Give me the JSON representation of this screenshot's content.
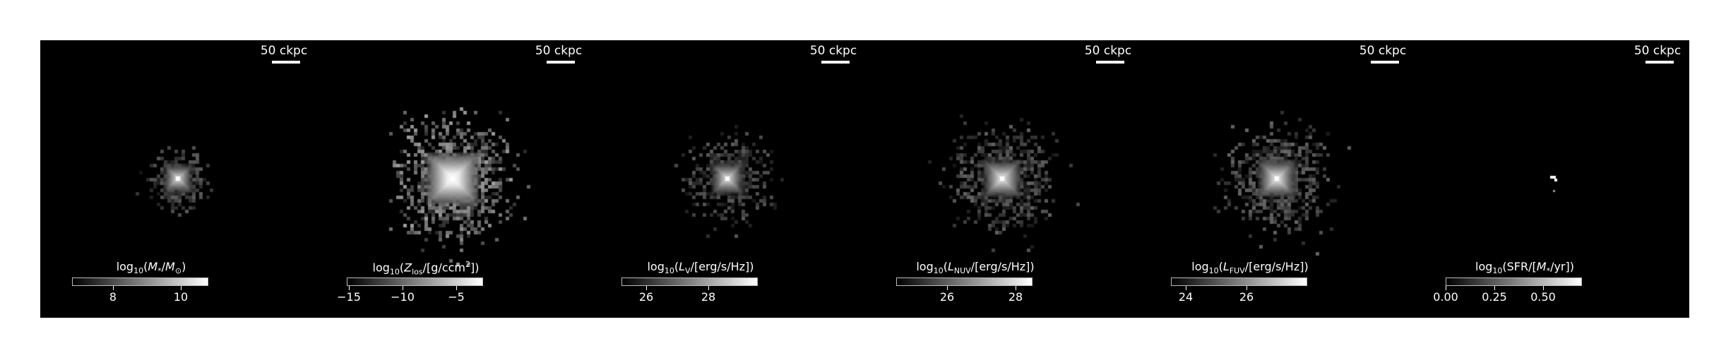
{
  "figure": {
    "panels": [
      {
        "scalebar": "50 ckpc",
        "colorbar_label_html": "log<sub>10</sub>(<i>M</i><sub>*</sub>/<i>M</i><sub>&#8857;</sub>)",
        "colorbar_range": [
          6.8,
          10.8
        ],
        "ticks": [
          {
            "value": 8,
            "label": "8"
          },
          {
            "value": 10,
            "label": "10"
          }
        ]
      },
      {
        "scalebar": "50 ckpc",
        "colorbar_label_html": "log<sub>10</sub>(<i>Z</i><sub>los</sub>/[g/ccm<sup>2</sup>])",
        "colorbar_range": [
          -15.2,
          -2.5
        ],
        "ticks": [
          {
            "value": -15,
            "label": "−15"
          },
          {
            "value": -10,
            "label": "−10"
          },
          {
            "value": -5,
            "label": "−5"
          }
        ]
      },
      {
        "scalebar": "50 ckpc",
        "colorbar_label_html": "log<sub>10</sub>(<i>L</i><sub>V</sub>/[erg/s/Hz])",
        "colorbar_range": [
          25.2,
          29.6
        ],
        "ticks": [
          {
            "value": 26,
            "label": "26"
          },
          {
            "value": 28,
            "label": "28"
          }
        ]
      },
      {
        "scalebar": "50 ckpc",
        "colorbar_label_html": "log<sub>10</sub>(<i>L</i><sub>NUV</sub>/[erg/s/Hz])",
        "colorbar_range": [
          24.5,
          28.5
        ],
        "ticks": [
          {
            "value": 26,
            "label": "26"
          },
          {
            "value": 28,
            "label": "28"
          }
        ]
      },
      {
        "scalebar": "50 ckpc",
        "colorbar_label_html": "log<sub>10</sub>(<i>L</i><sub>FUV</sub>/[erg/s/Hz])",
        "colorbar_range": [
          23.5,
          28.0
        ],
        "ticks": [
          {
            "value": 24,
            "label": "24"
          },
          {
            "value": 26,
            "label": "26"
          }
        ]
      },
      {
        "scalebar": "50 ckpc",
        "colorbar_label_html": "log<sub>10</sub>(SFR/[<i>M</i><sub>*</sub>/yr])",
        "colorbar_range": [
          0.0,
          0.7
        ],
        "ticks": [
          {
            "value": 0,
            "label": "0.00"
          },
          {
            "value": 0.25,
            "label": "0.25"
          },
          {
            "value": 0.5,
            "label": "0.50"
          }
        ]
      }
    ]
  }
}
